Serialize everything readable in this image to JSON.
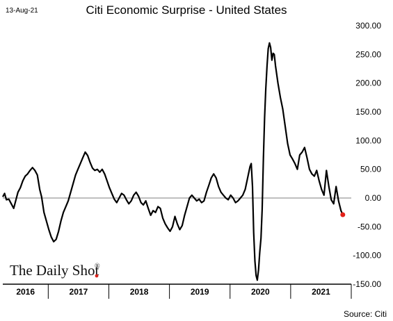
{
  "date_label": "13-Aug-21",
  "source": "Source: Citi",
  "watermark": "The Daily Shot",
  "watermark_mark": "®",
  "chart_data": {
    "type": "line",
    "title": "Citi Economic Surprise - United States",
    "xlabel": "",
    "ylabel": "",
    "ylim": [
      -150,
      300
    ],
    "y_ticks": [
      300,
      250,
      200,
      150,
      100,
      50,
      0,
      -50,
      -100,
      -150
    ],
    "y_tick_labels": [
      "300.00",
      "250.00",
      "200.00",
      "150.00",
      "100.00",
      "50.00",
      "0.00",
      "-50.00",
      "-100.00",
      "-150.00"
    ],
    "x_unit": "year (decimal)",
    "xlim": [
      2016.0,
      2021.75
    ],
    "year_labels": [
      "2016",
      "2017",
      "2018",
      "2019",
      "2020",
      "2021"
    ],
    "grid": false,
    "zero_line": true,
    "line_color": "#000000",
    "end_marker_color": "#e32119",
    "series": [
      {
        "values": [
          [
            2016.0,
            2
          ],
          [
            2016.03,
            8
          ],
          [
            2016.06,
            -3
          ],
          [
            2016.1,
            -2
          ],
          [
            2016.14,
            -10
          ],
          [
            2016.18,
            -18
          ],
          [
            2016.21,
            -6
          ],
          [
            2016.25,
            10
          ],
          [
            2016.29,
            18
          ],
          [
            2016.33,
            30
          ],
          [
            2016.37,
            38
          ],
          [
            2016.41,
            42
          ],
          [
            2016.45,
            48
          ],
          [
            2016.49,
            53
          ],
          [
            2016.53,
            48
          ],
          [
            2016.57,
            40
          ],
          [
            2016.61,
            15
          ],
          [
            2016.64,
            2
          ],
          [
            2016.68,
            -25
          ],
          [
            2016.72,
            -40
          ],
          [
            2016.76,
            -55
          ],
          [
            2016.8,
            -68
          ],
          [
            2016.84,
            -76
          ],
          [
            2016.88,
            -72
          ],
          [
            2016.92,
            -58
          ],
          [
            2016.96,
            -40
          ],
          [
            2017.0,
            -25
          ],
          [
            2017.04,
            -15
          ],
          [
            2017.08,
            -5
          ],
          [
            2017.12,
            10
          ],
          [
            2017.16,
            25
          ],
          [
            2017.2,
            40
          ],
          [
            2017.24,
            50
          ],
          [
            2017.28,
            60
          ],
          [
            2017.32,
            70
          ],
          [
            2017.36,
            80
          ],
          [
            2017.4,
            74
          ],
          [
            2017.44,
            62
          ],
          [
            2017.48,
            52
          ],
          [
            2017.52,
            48
          ],
          [
            2017.56,
            50
          ],
          [
            2017.6,
            45
          ],
          [
            2017.64,
            50
          ],
          [
            2017.68,
            42
          ],
          [
            2017.72,
            30
          ],
          [
            2017.76,
            18
          ],
          [
            2017.8,
            8
          ],
          [
            2017.84,
            -2
          ],
          [
            2017.88,
            -8
          ],
          [
            2017.92,
            0
          ],
          [
            2017.96,
            8
          ],
          [
            2018.0,
            5
          ],
          [
            2018.04,
            -3
          ],
          [
            2018.08,
            -10
          ],
          [
            2018.12,
            -5
          ],
          [
            2018.16,
            5
          ],
          [
            2018.2,
            10
          ],
          [
            2018.24,
            3
          ],
          [
            2018.28,
            -8
          ],
          [
            2018.32,
            -12
          ],
          [
            2018.36,
            -5
          ],
          [
            2018.4,
            -18
          ],
          [
            2018.44,
            -30
          ],
          [
            2018.48,
            -22
          ],
          [
            2018.52,
            -25
          ],
          [
            2018.56,
            -15
          ],
          [
            2018.6,
            -18
          ],
          [
            2018.64,
            -35
          ],
          [
            2018.68,
            -45
          ],
          [
            2018.72,
            -52
          ],
          [
            2018.76,
            -58
          ],
          [
            2018.8,
            -50
          ],
          [
            2018.84,
            -32
          ],
          [
            2018.88,
            -45
          ],
          [
            2018.92,
            -55
          ],
          [
            2018.96,
            -48
          ],
          [
            2019.0,
            -30
          ],
          [
            2019.04,
            -15
          ],
          [
            2019.08,
            0
          ],
          [
            2019.12,
            5
          ],
          [
            2019.16,
            0
          ],
          [
            2019.2,
            -5
          ],
          [
            2019.24,
            -2
          ],
          [
            2019.28,
            -8
          ],
          [
            2019.32,
            -5
          ],
          [
            2019.36,
            10
          ],
          [
            2019.4,
            22
          ],
          [
            2019.44,
            35
          ],
          [
            2019.48,
            42
          ],
          [
            2019.52,
            35
          ],
          [
            2019.56,
            20
          ],
          [
            2019.6,
            10
          ],
          [
            2019.64,
            5
          ],
          [
            2019.68,
            0
          ],
          [
            2019.72,
            -3
          ],
          [
            2019.76,
            5
          ],
          [
            2019.8,
            0
          ],
          [
            2019.84,
            -8
          ],
          [
            2019.88,
            -5
          ],
          [
            2019.92,
            0
          ],
          [
            2019.96,
            5
          ],
          [
            2020.0,
            15
          ],
          [
            2020.04,
            35
          ],
          [
            2020.08,
            55
          ],
          [
            2020.1,
            60
          ],
          [
            2020.12,
            20
          ],
          [
            2020.14,
            -60
          ],
          [
            2020.16,
            -110
          ],
          [
            2020.18,
            -135
          ],
          [
            2020.2,
            -143
          ],
          [
            2020.22,
            -125
          ],
          [
            2020.24,
            -95
          ],
          [
            2020.26,
            -70
          ],
          [
            2020.28,
            -20
          ],
          [
            2020.3,
            70
          ],
          [
            2020.32,
            140
          ],
          [
            2020.34,
            190
          ],
          [
            2020.36,
            230
          ],
          [
            2020.38,
            260
          ],
          [
            2020.4,
            270
          ],
          [
            2020.42,
            262
          ],
          [
            2020.44,
            240
          ],
          [
            2020.46,
            252
          ],
          [
            2020.48,
            250
          ],
          [
            2020.5,
            230
          ],
          [
            2020.54,
            200
          ],
          [
            2020.58,
            175
          ],
          [
            2020.62,
            155
          ],
          [
            2020.66,
            125
          ],
          [
            2020.7,
            95
          ],
          [
            2020.74,
            75
          ],
          [
            2020.78,
            68
          ],
          [
            2020.82,
            60
          ],
          [
            2020.86,
            50
          ],
          [
            2020.9,
            75
          ],
          [
            2020.94,
            80
          ],
          [
            2020.98,
            88
          ],
          [
            2021.02,
            70
          ],
          [
            2021.06,
            50
          ],
          [
            2021.1,
            42
          ],
          [
            2021.14,
            38
          ],
          [
            2021.18,
            48
          ],
          [
            2021.22,
            30
          ],
          [
            2021.26,
            15
          ],
          [
            2021.3,
            5
          ],
          [
            2021.34,
            48
          ],
          [
            2021.38,
            20
          ],
          [
            2021.42,
            -3
          ],
          [
            2021.46,
            -10
          ],
          [
            2021.5,
            20
          ],
          [
            2021.54,
            -5
          ],
          [
            2021.58,
            -22
          ],
          [
            2021.61,
            -29
          ]
        ]
      }
    ],
    "end_point": [
      2021.61,
      -29
    ]
  }
}
